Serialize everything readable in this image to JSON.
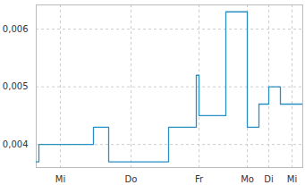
{
  "chart_data": {
    "type": "line",
    "line_style": "step",
    "color": "#2a8fc4",
    "grid": true,
    "x": [
      0,
      3,
      64,
      81,
      148,
      179,
      182,
      212,
      236,
      249,
      260,
      273,
      298
    ],
    "values": [
      0.0037,
      0.004,
      0.0043,
      0.0037,
      0.0043,
      0.0052,
      0.0045,
      0.0063,
      0.0043,
      0.0047,
      0.005,
      0.0047,
      0.0047
    ],
    "xlim": [
      0,
      298
    ],
    "xticks": [
      {
        "value": 27,
        "label": "Mi"
      },
      {
        "value": 106,
        "label": "Do"
      },
      {
        "value": 182,
        "label": "Fr"
      },
      {
        "value": 236,
        "label": "Mo"
      },
      {
        "value": 260,
        "label": "Di"
      },
      {
        "value": 286,
        "label": "Mi"
      }
    ],
    "ylim": [
      0.0036,
      0.00642
    ],
    "yticks": [
      {
        "value": 0.004,
        "label": "0,004"
      },
      {
        "value": 0.005,
        "label": "0,005"
      },
      {
        "value": 0.006,
        "label": "0,006"
      }
    ]
  }
}
